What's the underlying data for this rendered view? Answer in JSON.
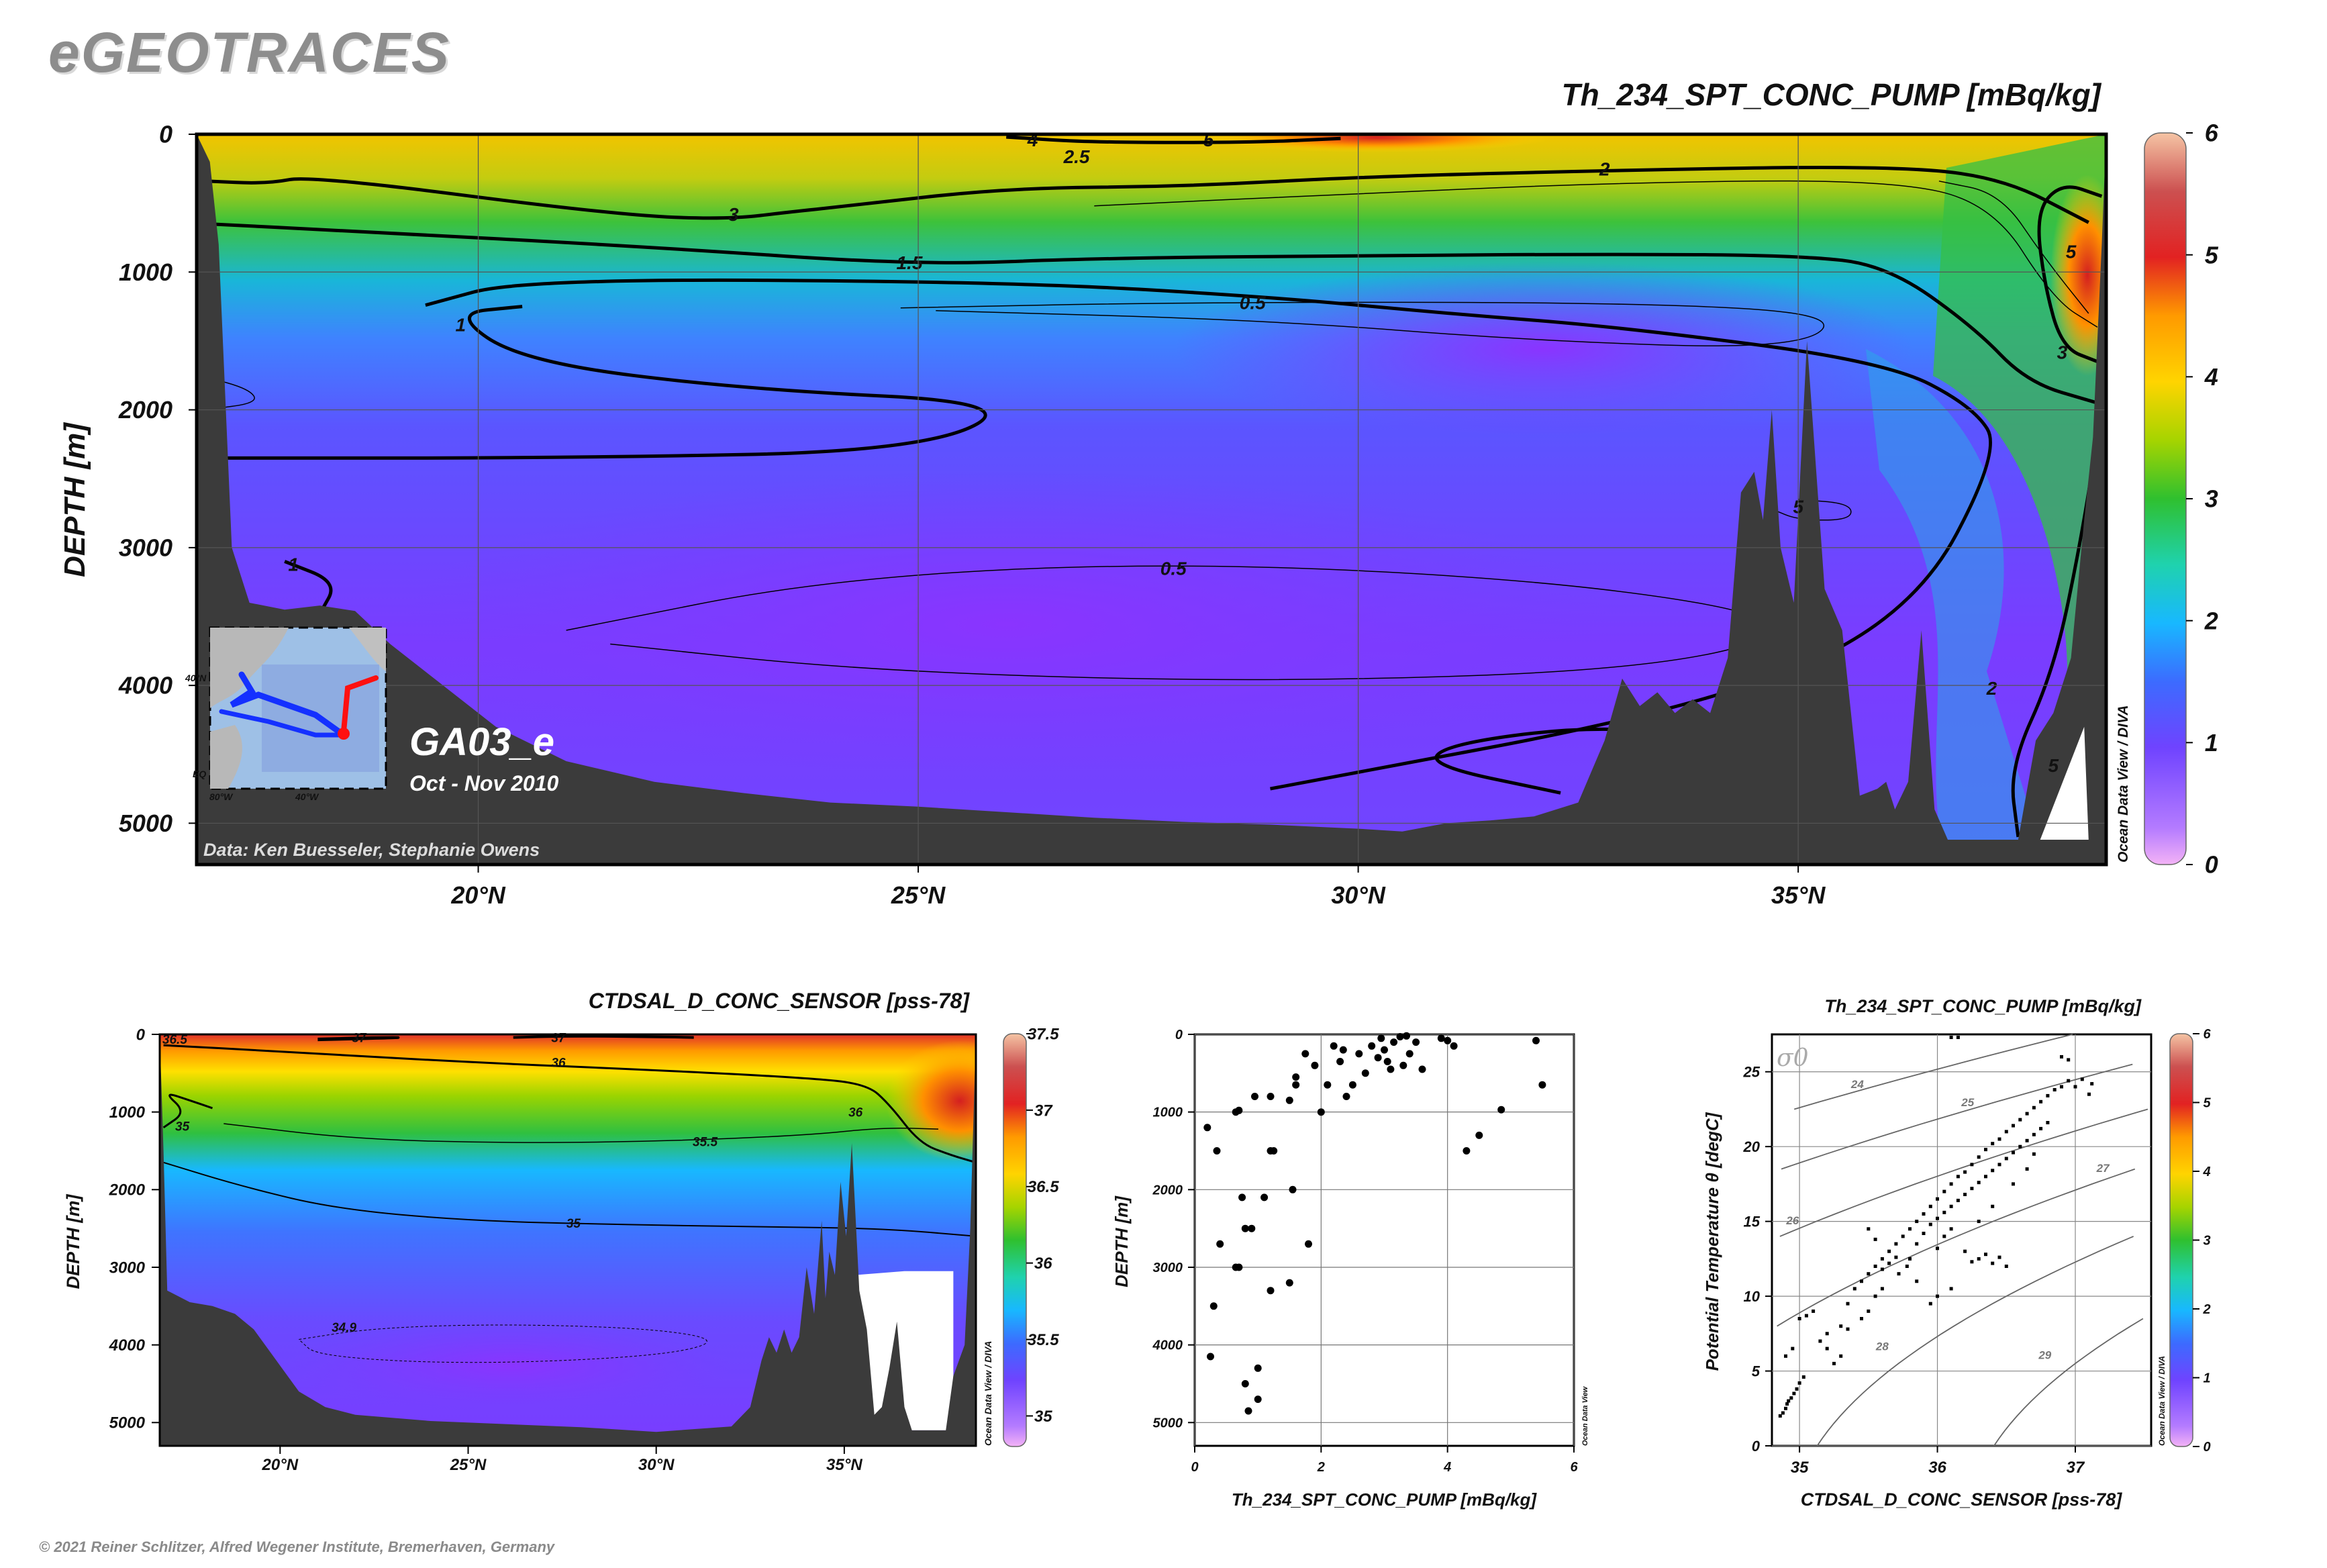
{
  "header": {
    "brand": "eGEOTRACES",
    "copyright": "© 2021 Reiner Schlitzer, Alfred Wegener Institute, Bremerhaven, Germany"
  },
  "main_section": {
    "title": "Th_234_SPT_CONC_PUMP [mBq/kg]",
    "ylabel": "DEPTH [m]",
    "cruise": "GA03_e",
    "dates": "Oct - Nov 2010",
    "credit": "Data: Ken Buesseler, Stephanie Owens",
    "watermark": "Ocean Data View / DIVA",
    "inset_map_labels": [
      "40°N",
      "80°W",
      "40°W",
      "EQ"
    ]
  },
  "bottom_section": {
    "title": "CTDSAL_D_CONC_SENSOR [pss-78]",
    "ylabel": "DEPTH [m]",
    "watermark": "Ocean Data View / DIVA"
  },
  "scatter_depth": {
    "xlabel": "Th_234_SPT_CONC_PUMP [mBq/kg]",
    "ylabel": "DEPTH [m]",
    "watermark": "Ocean Data View"
  },
  "ts_plot": {
    "title": "Th_234_SPT_CONC_PUMP [mBq/kg]",
    "xlabel": "CTDSAL_D_CONC_SENSOR [pss-78]",
    "ylabel": "Potential Temperature θ [degC]",
    "sigma_label": "σ0",
    "watermark": "Ocean Data View / DIVA"
  },
  "colors": {
    "bathymetry": "#3b3b3b",
    "ramp": [
      "#f5b3f5",
      "#b06cff",
      "#7a3cff",
      "#3f6bff",
      "#18b8ff",
      "#1fd4b0",
      "#2fc02f",
      "#a6d400",
      "#ffd400",
      "#ff9900",
      "#e02020",
      "#c84a4a",
      "#f2c0a0"
    ]
  },
  "chart_data": [
    {
      "type": "heatmap",
      "id": "main_th234_section",
      "title": "Th_234_SPT_CONC_PUMP [mBq/kg]",
      "ylabel": "DEPTH [m]",
      "xlim": [
        16.8,
        38.5
      ],
      "ylim": [
        5300,
        0
      ],
      "xticks": [
        20,
        25,
        30,
        35
      ],
      "xticklabels": [
        "20°N",
        "25°N",
        "30°N",
        "35°N"
      ],
      "yticks": [
        0,
        1000,
        2000,
        3000,
        4000,
        5000
      ],
      "yticklabels": [
        "0",
        "1000",
        "2000",
        "3000",
        "4000",
        "5000"
      ],
      "colorbar": {
        "range": [
          0,
          6
        ],
        "ticks": [
          0,
          1,
          2,
          3,
          4,
          5,
          6
        ],
        "ticklabels": [
          "0",
          "1",
          "2",
          "3",
          "4",
          "5",
          "6"
        ]
      },
      "contour_labels": [
        {
          "text": "4",
          "x": 26.3,
          "y": 40
        },
        {
          "text": "5",
          "x": 28.3,
          "y": 40
        },
        {
          "text": "2.5",
          "x": 26.8,
          "y": 160
        },
        {
          "text": "2",
          "x": 32.8,
          "y": 250
        },
        {
          "text": "3",
          "x": 22.9,
          "y": 580
        },
        {
          "text": "1.5",
          "x": 24.9,
          "y": 930
        },
        {
          "text": "0.5",
          "x": 28.8,
          "y": 1220
        },
        {
          "text": "1",
          "x": 19.8,
          "y": 1380
        },
        {
          "text": "5",
          "x": 38.1,
          "y": 850
        },
        {
          "text": "3",
          "x": 38.0,
          "y": 1580
        },
        {
          "text": "5",
          "x": 35.0,
          "y": 2700
        },
        {
          "text": "0.5",
          "x": 27.9,
          "y": 3150
        },
        {
          "text": "1",
          "x": 17.9,
          "y": 3120
        },
        {
          "text": "2",
          "x": 37.2,
          "y": 4020
        },
        {
          "text": "5",
          "x": 37.9,
          "y": 4580
        }
      ]
    },
    {
      "type": "heatmap",
      "id": "bottom_salinity_section",
      "title": "CTDSAL_D_CONC_SENSOR [pss-78]",
      "ylabel": "DEPTH [m]",
      "xlim": [
        16.8,
        38.5
      ],
      "ylim": [
        5300,
        0
      ],
      "xticks": [
        20,
        25,
        30,
        35
      ],
      "xticklabels": [
        "20°N",
        "25°N",
        "30°N",
        "35°N"
      ],
      "yticks": [
        0,
        1000,
        2000,
        3000,
        4000,
        5000
      ],
      "yticklabels": [
        "0",
        "1000",
        "2000",
        "3000",
        "4000",
        "5000"
      ],
      "colorbar": {
        "range": [
          34.8,
          37.5
        ],
        "ticks": [
          35,
          35.5,
          36,
          36.5,
          37,
          37.5
        ],
        "ticklabels": [
          "35",
          "35.5",
          "36",
          "36.5",
          "37",
          "37.5"
        ]
      },
      "contour_labels": [
        {
          "text": "36.5",
          "x": 17.2,
          "y": 60
        },
        {
          "text": "37",
          "x": 22.1,
          "y": 40
        },
        {
          "text": "37",
          "x": 27.4,
          "y": 40
        },
        {
          "text": "36",
          "x": 27.4,
          "y": 360
        },
        {
          "text": "36",
          "x": 35.3,
          "y": 1000
        },
        {
          "text": "35",
          "x": 17.4,
          "y": 1180
        },
        {
          "text": "35.5",
          "x": 31.3,
          "y": 1380
        },
        {
          "text": "35",
          "x": 27.8,
          "y": 2430
        },
        {
          "text": "34.9",
          "x": 21.7,
          "y": 3770
        }
      ]
    },
    {
      "type": "scatter",
      "id": "th234_vs_depth",
      "xlabel": "Th_234_SPT_CONC_PUMP [mBq/kg]",
      "ylabel": "DEPTH [m]",
      "xlim": [
        0,
        6
      ],
      "ylim": [
        5300,
        0
      ],
      "xticks": [
        0,
        2,
        4,
        6
      ],
      "xticklabels": [
        "0",
        "2",
        "4",
        "6"
      ],
      "yticks": [
        0,
        1000,
        2000,
        3000,
        4000,
        5000
      ],
      "yticklabels": [
        "0",
        "1000",
        "2000",
        "3000",
        "4000",
        "5000"
      ],
      "points": [
        [
          0.2,
          1200
        ],
        [
          0.35,
          1500
        ],
        [
          0.4,
          2700
        ],
        [
          0.3,
          3500
        ],
        [
          0.25,
          4150
        ],
        [
          0.65,
          1000
        ],
        [
          0.7,
          980
        ],
        [
          0.75,
          2100
        ],
        [
          0.65,
          3000
        ],
        [
          0.7,
          3000
        ],
        [
          0.8,
          2500
        ],
        [
          0.9,
          2500
        ],
        [
          0.8,
          4500
        ],
        [
          0.85,
          4850
        ],
        [
          1.0,
          4700
        ],
        [
          1.0,
          4300
        ],
        [
          1.1,
          2100
        ],
        [
          1.2,
          3300
        ],
        [
          0.95,
          800
        ],
        [
          1.2,
          1500
        ],
        [
          1.25,
          1500
        ],
        [
          1.2,
          800
        ],
        [
          1.5,
          850
        ],
        [
          1.5,
          3200
        ],
        [
          1.55,
          2000
        ],
        [
          1.6,
          650
        ],
        [
          1.6,
          550
        ],
        [
          1.8,
          2700
        ],
        [
          1.75,
          250
        ],
        [
          1.9,
          400
        ],
        [
          2.0,
          1000
        ],
        [
          2.1,
          650
        ],
        [
          2.2,
          150
        ],
        [
          2.3,
          350
        ],
        [
          2.4,
          800
        ],
        [
          2.5,
          650
        ],
        [
          2.35,
          200
        ],
        [
          2.6,
          250
        ],
        [
          2.7,
          500
        ],
        [
          2.8,
          150
        ],
        [
          2.9,
          300
        ],
        [
          2.95,
          50
        ],
        [
          3.0,
          200
        ],
        [
          3.05,
          350
        ],
        [
          3.1,
          450
        ],
        [
          3.15,
          100
        ],
        [
          3.3,
          400
        ],
        [
          3.4,
          250
        ],
        [
          3.5,
          100
        ],
        [
          3.6,
          450
        ],
        [
          3.9,
          50
        ],
        [
          4.0,
          80
        ],
        [
          4.1,
          150
        ],
        [
          4.3,
          1500
        ],
        [
          4.5,
          1300
        ],
        [
          4.85,
          970
        ],
        [
          5.4,
          80
        ],
        [
          5.5,
          650
        ],
        [
          3.35,
          20
        ],
        [
          3.25,
          30
        ]
      ]
    },
    {
      "type": "scatter",
      "id": "theta_salinity_diagram",
      "title": "Th_234_SPT_CONC_PUMP [mBq/kg]",
      "xlabel": "CTDSAL_D_CONC_SENSOR [pss-78]",
      "ylabel": "Potential Temperature θ [degC]",
      "xlim": [
        34.8,
        37.55
      ],
      "ylim": [
        0,
        27.5
      ],
      "xticks": [
        35,
        36,
        37
      ],
      "xticklabels": [
        "35",
        "36",
        "37"
      ],
      "yticks": [
        0,
        5,
        10,
        15,
        20,
        25
      ],
      "yticklabels": [
        "0",
        "5",
        "10",
        "15",
        "20",
        "25"
      ],
      "isopycnals": [
        24,
        25,
        26,
        27,
        28,
        29
      ],
      "isopycnal_labels": [
        {
          "text": "24",
          "x": 35.42,
          "y": 23.9
        },
        {
          "text": "25",
          "x": 36.22,
          "y": 22.7
        },
        {
          "text": "26",
          "x": 34.95,
          "y": 14.8
        },
        {
          "text": "27",
          "x": 37.2,
          "y": 18.3
        },
        {
          "text": "28",
          "x": 35.6,
          "y": 6.4
        },
        {
          "text": "29",
          "x": 36.78,
          "y": 5.8
        }
      ],
      "colorbar": {
        "range": [
          0,
          6
        ],
        "ticks": [
          0,
          1,
          2,
          3,
          4,
          5,
          6
        ],
        "ticklabels": [
          "0",
          "1",
          "2",
          "3",
          "4",
          "5",
          "6"
        ]
      },
      "points": [
        [
          34.86,
          2.0
        ],
        [
          34.88,
          2.2
        ],
        [
          34.9,
          2.5
        ],
        [
          34.91,
          2.8
        ],
        [
          34.92,
          3.0
        ],
        [
          34.94,
          3.2
        ],
        [
          34.96,
          3.5
        ],
        [
          34.98,
          3.8
        ],
        [
          35.0,
          4.2
        ],
        [
          35.03,
          4.6
        ],
        [
          34.9,
          6.0
        ],
        [
          34.95,
          6.5
        ],
        [
          35.0,
          8.5
        ],
        [
          35.05,
          8.7
        ],
        [
          35.1,
          9.0
        ],
        [
          35.15,
          7.0
        ],
        [
          35.2,
          6.5
        ],
        [
          35.3,
          8.0
        ],
        [
          35.35,
          9.5
        ],
        [
          35.4,
          10.5
        ],
        [
          35.45,
          11.0
        ],
        [
          35.5,
          11.5
        ],
        [
          35.55,
          12.0
        ],
        [
          35.6,
          12.5
        ],
        [
          35.65,
          13.0
        ],
        [
          35.7,
          13.5
        ],
        [
          35.75,
          14.0
        ],
        [
          35.8,
          14.5
        ],
        [
          35.85,
          15.0
        ],
        [
          35.9,
          15.5
        ],
        [
          35.95,
          16.0
        ],
        [
          36.0,
          16.5
        ],
        [
          36.05,
          17.0
        ],
        [
          36.1,
          17.5
        ],
        [
          36.15,
          18.0
        ],
        [
          36.2,
          18.3
        ],
        [
          36.25,
          18.8
        ],
        [
          36.3,
          19.3
        ],
        [
          36.35,
          19.8
        ],
        [
          36.4,
          20.2
        ],
        [
          36.45,
          20.5
        ],
        [
          36.5,
          21.0
        ],
        [
          36.55,
          21.4
        ],
        [
          36.6,
          21.8
        ],
        [
          36.65,
          22.2
        ],
        [
          36.7,
          22.6
        ],
        [
          36.75,
          23.0
        ],
        [
          36.8,
          23.4
        ],
        [
          36.85,
          23.8
        ],
        [
          36.9,
          24.0
        ],
        [
          36.95,
          24.4
        ],
        [
          37.0,
          24.0
        ],
        [
          37.05,
          24.5
        ],
        [
          37.1,
          23.5
        ],
        [
          37.12,
          24.2
        ],
        [
          36.9,
          26.0
        ],
        [
          36.95,
          25.8
        ],
        [
          36.1,
          27.3
        ],
        [
          36.15,
          27.3
        ],
        [
          35.6,
          11.8
        ],
        [
          35.65,
          12.2
        ],
        [
          35.7,
          12.6
        ],
        [
          35.72,
          11.5
        ],
        [
          35.78,
          12.0
        ],
        [
          35.85,
          13.5
        ],
        [
          35.9,
          14.2
        ],
        [
          35.95,
          14.8
        ],
        [
          36.0,
          15.2
        ],
        [
          36.05,
          15.6
        ],
        [
          36.1,
          16.0
        ],
        [
          36.15,
          16.4
        ],
        [
          36.2,
          16.8
        ],
        [
          36.25,
          17.2
        ],
        [
          36.3,
          17.6
        ],
        [
          36.35,
          18.0
        ],
        [
          36.4,
          18.4
        ],
        [
          36.45,
          18.8
        ],
        [
          36.5,
          19.2
        ],
        [
          36.55,
          19.6
        ],
        [
          36.6,
          20.0
        ],
        [
          36.65,
          20.4
        ],
        [
          36.7,
          20.8
        ],
        [
          36.75,
          21.2
        ],
        [
          36.8,
          21.6
        ],
        [
          36.3,
          12.5
        ],
        [
          36.35,
          12.8
        ],
        [
          36.4,
          12.2
        ],
        [
          36.45,
          12.6
        ],
        [
          36.5,
          12.0
        ],
        [
          36.2,
          13.0
        ],
        [
          36.25,
          12.3
        ],
        [
          36.1,
          10.5
        ],
        [
          36.0,
          10.0
        ],
        [
          35.95,
          9.5
        ],
        [
          35.2,
          7.5
        ],
        [
          35.25,
          5.5
        ],
        [
          35.3,
          6.0
        ],
        [
          35.35,
          7.8
        ],
        [
          35.45,
          8.5
        ],
        [
          35.5,
          9.0
        ],
        [
          35.55,
          10.0
        ],
        [
          35.6,
          10.5
        ],
        [
          35.5,
          14.5
        ],
        [
          35.55,
          13.8
        ],
        [
          35.8,
          12.5
        ],
        [
          35.85,
          11.0
        ],
        [
          36.0,
          13.2
        ],
        [
          36.05,
          14.0
        ],
        [
          36.1,
          14.5
        ],
        [
          36.3,
          15.0
        ],
        [
          36.4,
          16.0
        ],
        [
          36.55,
          17.5
        ],
        [
          36.65,
          18.5
        ],
        [
          36.7,
          19.5
        ]
      ]
    }
  ]
}
